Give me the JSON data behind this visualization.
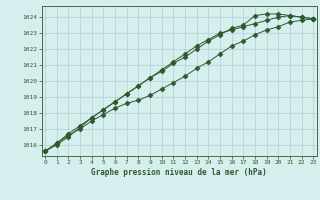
{
  "title": "Graphe pression niveau de la mer (hPa)",
  "bg_color": "#d7eeee",
  "grid_color": "#b0d0d0",
  "line_color": "#2d5a2d",
  "xlim": [
    -0.3,
    23.3
  ],
  "ylim": [
    1015.3,
    1024.7
  ],
  "yticks": [
    1016,
    1017,
    1018,
    1019,
    1020,
    1021,
    1022,
    1023,
    1024
  ],
  "xticks": [
    0,
    1,
    2,
    3,
    4,
    5,
    6,
    7,
    8,
    9,
    10,
    11,
    12,
    13,
    14,
    15,
    16,
    17,
    18,
    19,
    20,
    21,
    22,
    23
  ],
  "series": [
    [
      1015.6,
      1016.1,
      1016.6,
      1017.0,
      1017.5,
      1017.9,
      1018.3,
      1018.6,
      1018.8,
      1019.1,
      1019.5,
      1019.9,
      1020.3,
      1020.8,
      1021.2,
      1021.7,
      1022.2,
      1022.5,
      1022.9,
      1023.2,
      1023.4,
      1023.7,
      1023.8,
      1023.9
    ],
    [
      1015.6,
      1016.1,
      1016.7,
      1017.2,
      1017.7,
      1018.2,
      1018.7,
      1019.2,
      1019.7,
      1020.2,
      1020.7,
      1021.2,
      1021.7,
      1022.2,
      1022.6,
      1023.0,
      1023.2,
      1023.4,
      1023.6,
      1023.8,
      1024.0,
      1024.1,
      1024.0,
      1023.9
    ],
    [
      1015.6,
      1016.0,
      1016.5,
      1017.1,
      1017.7,
      1018.2,
      1018.7,
      1019.2,
      1019.7,
      1020.2,
      1020.6,
      1021.1,
      1021.5,
      1022.0,
      1022.5,
      1022.9,
      1023.3,
      1023.5,
      1024.1,
      1024.2,
      1024.2,
      1024.1,
      1024.0,
      1023.9
    ]
  ]
}
